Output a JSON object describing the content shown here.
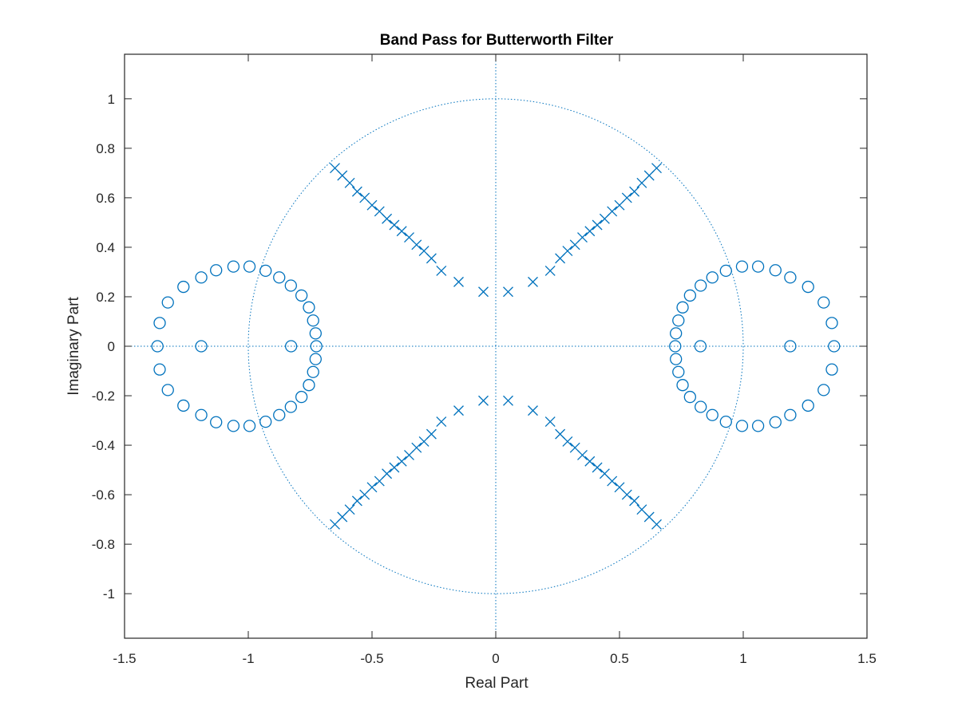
{
  "chart_data": {
    "type": "scatter",
    "title": "Band Pass for Butterworth Filter",
    "xlabel": "Real Part",
    "ylabel": "Imaginary Part",
    "xlim": [
      -1.5,
      1.5
    ],
    "ylim": [
      -1.18,
      1.18
    ],
    "xticks": [
      -1.5,
      -1,
      -0.5,
      0,
      0.5,
      1,
      1.5
    ],
    "xtick_labels": [
      "-1.5",
      "-1",
      "-0.5",
      "0",
      "0.5",
      "1",
      "1.5"
    ],
    "yticks": [
      -1,
      -0.8,
      -0.6,
      -0.4,
      -0.2,
      0,
      0.2,
      0.4,
      0.6,
      0.8,
      1
    ],
    "ytick_labels": [
      "-1",
      "-0.8",
      "-0.6",
      "-0.4",
      "-0.2",
      "0",
      "0.2",
      "0.4",
      "0.6",
      "0.8",
      "1"
    ],
    "grid": false,
    "unit_circle": true,
    "color": "#0072BD",
    "series": [
      {
        "marker": "o",
        "points": [
          [
            -1.367,
            0.0
          ],
          [
            -1.358,
            0.094
          ],
          [
            -1.325,
            0.177
          ],
          [
            -1.262,
            0.24
          ],
          [
            -1.19,
            0.278
          ],
          [
            -1.13,
            0.307
          ],
          [
            -1.06,
            0.322
          ],
          [
            -0.995,
            0.322
          ],
          [
            -0.93,
            0.305
          ],
          [
            -0.875,
            0.278
          ],
          [
            -0.828,
            0.245
          ],
          [
            -0.785,
            0.205
          ],
          [
            -0.755,
            0.157
          ],
          [
            -0.738,
            0.104
          ],
          [
            -0.728,
            0.052
          ],
          [
            -0.725,
            0.0
          ],
          [
            -0.728,
            -0.052
          ],
          [
            -0.738,
            -0.104
          ],
          [
            -0.755,
            -0.157
          ],
          [
            -0.785,
            -0.205
          ],
          [
            -0.828,
            -0.245
          ],
          [
            -0.875,
            -0.278
          ],
          [
            -0.93,
            -0.305
          ],
          [
            -0.995,
            -0.322
          ],
          [
            -1.06,
            -0.322
          ],
          [
            -1.13,
            -0.307
          ],
          [
            -1.19,
            -0.278
          ],
          [
            -1.262,
            -0.24
          ],
          [
            -1.325,
            -0.177
          ],
          [
            -1.358,
            -0.094
          ],
          [
            -1.19,
            0.0
          ],
          [
            -0.827,
            0.0
          ],
          [
            1.367,
            0.0
          ],
          [
            1.358,
            0.094
          ],
          [
            1.325,
            0.177
          ],
          [
            1.262,
            0.24
          ],
          [
            1.19,
            0.278
          ],
          [
            1.13,
            0.307
          ],
          [
            1.06,
            0.322
          ],
          [
            0.995,
            0.322
          ],
          [
            0.93,
            0.305
          ],
          [
            0.875,
            0.278
          ],
          [
            0.828,
            0.245
          ],
          [
            0.785,
            0.205
          ],
          [
            0.755,
            0.157
          ],
          [
            0.738,
            0.104
          ],
          [
            0.728,
            0.052
          ],
          [
            0.725,
            0.0
          ],
          [
            0.728,
            -0.052
          ],
          [
            0.738,
            -0.104
          ],
          [
            0.755,
            -0.157
          ],
          [
            0.785,
            -0.205
          ],
          [
            0.828,
            -0.245
          ],
          [
            0.875,
            -0.278
          ],
          [
            0.93,
            -0.305
          ],
          [
            0.995,
            -0.322
          ],
          [
            1.06,
            -0.322
          ],
          [
            1.13,
            -0.307
          ],
          [
            1.19,
            -0.278
          ],
          [
            1.262,
            -0.24
          ],
          [
            1.325,
            -0.177
          ],
          [
            1.358,
            -0.094
          ],
          [
            1.19,
            0.0
          ],
          [
            0.827,
            0.0
          ]
        ]
      },
      {
        "marker": "x",
        "points": [
          [
            -0.65,
            0.72
          ],
          [
            -0.62,
            0.69
          ],
          [
            -0.59,
            0.66
          ],
          [
            -0.56,
            0.625
          ],
          [
            -0.53,
            0.6
          ],
          [
            -0.5,
            0.57
          ],
          [
            -0.47,
            0.545
          ],
          [
            -0.44,
            0.515
          ],
          [
            -0.41,
            0.49
          ],
          [
            -0.38,
            0.465
          ],
          [
            -0.35,
            0.44
          ],
          [
            -0.32,
            0.41
          ],
          [
            -0.29,
            0.385
          ],
          [
            -0.26,
            0.355
          ],
          [
            -0.22,
            0.305
          ],
          [
            -0.15,
            0.26
          ],
          [
            -0.05,
            0.22
          ],
          [
            0.65,
            0.72
          ],
          [
            0.62,
            0.69
          ],
          [
            0.59,
            0.66
          ],
          [
            0.56,
            0.625
          ],
          [
            0.53,
            0.6
          ],
          [
            0.5,
            0.57
          ],
          [
            0.47,
            0.545
          ],
          [
            0.44,
            0.515
          ],
          [
            0.41,
            0.49
          ],
          [
            0.38,
            0.465
          ],
          [
            0.35,
            0.44
          ],
          [
            0.32,
            0.41
          ],
          [
            0.29,
            0.385
          ],
          [
            0.26,
            0.355
          ],
          [
            0.22,
            0.305
          ],
          [
            0.15,
            0.26
          ],
          [
            0.05,
            0.22
          ],
          [
            -0.65,
            -0.72
          ],
          [
            -0.62,
            -0.69
          ],
          [
            -0.59,
            -0.66
          ],
          [
            -0.56,
            -0.625
          ],
          [
            -0.53,
            -0.6
          ],
          [
            -0.5,
            -0.57
          ],
          [
            -0.47,
            -0.545
          ],
          [
            -0.44,
            -0.515
          ],
          [
            -0.41,
            -0.49
          ],
          [
            -0.38,
            -0.465
          ],
          [
            -0.35,
            -0.44
          ],
          [
            -0.32,
            -0.41
          ],
          [
            -0.29,
            -0.385
          ],
          [
            -0.26,
            -0.355
          ],
          [
            -0.22,
            -0.305
          ],
          [
            -0.15,
            -0.26
          ],
          [
            -0.05,
            -0.22
          ],
          [
            0.65,
            -0.72
          ],
          [
            0.62,
            -0.69
          ],
          [
            0.59,
            -0.66
          ],
          [
            0.56,
            -0.625
          ],
          [
            0.53,
            -0.6
          ],
          [
            0.5,
            -0.57
          ],
          [
            0.47,
            -0.545
          ],
          [
            0.44,
            -0.515
          ],
          [
            0.41,
            -0.49
          ],
          [
            0.38,
            -0.465
          ],
          [
            0.35,
            -0.44
          ],
          [
            0.32,
            -0.41
          ],
          [
            0.29,
            -0.385
          ],
          [
            0.26,
            -0.355
          ],
          [
            0.22,
            -0.305
          ],
          [
            0.15,
            -0.26
          ],
          [
            0.05,
            -0.22
          ]
        ]
      }
    ]
  }
}
